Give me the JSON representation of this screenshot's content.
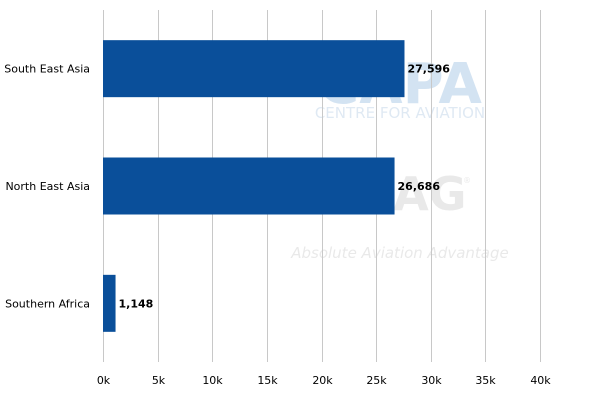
{
  "chart_data": {
    "type": "bar",
    "orientation": "horizontal",
    "categories": [
      "South East Asia",
      "North East Asia",
      "Southern Africa"
    ],
    "values": [
      27596,
      26686,
      1148
    ],
    "value_labels": [
      "27,596",
      "26,686",
      "1,148"
    ],
    "x_ticks": [
      "0k",
      "5k",
      "10k",
      "15k",
      "20k",
      "25k",
      "30k",
      "35k",
      "40k"
    ],
    "xlim": [
      0,
      40000
    ],
    "grid": "vertical",
    "legend": "none",
    "bar_color": "#0a4f9a",
    "grid_color": "#c8c8c8"
  },
  "watermark": {
    "line1": "CAPA",
    "line2": "CENTRE FOR AVIATION",
    "line3": "AAG",
    "line4": "Absolute Aviation Advantage",
    "registered": "®"
  }
}
